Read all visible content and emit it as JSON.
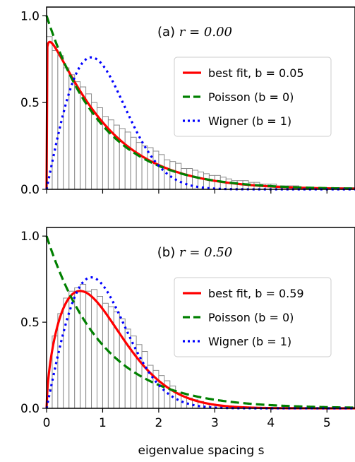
{
  "chart_data": [
    {
      "type": "bar",
      "panel_label": "(a)",
      "title": "r = 0.00",
      "xlabel": "",
      "ylabel": "",
      "xlim": [
        0,
        5.5
      ],
      "ylim": [
        0,
        1.05
      ],
      "yticks": [
        "0.0",
        "0.5",
        "1.0"
      ],
      "xticks": [
        "0",
        "1",
        "2",
        "3",
        "4",
        "5"
      ],
      "show_xtick_labels": false,
      "grid": false,
      "legend_position": "right",
      "bin_width": 0.1,
      "histogram": [
        0.88,
        0.8,
        0.77,
        0.7,
        0.66,
        0.62,
        0.59,
        0.55,
        0.5,
        0.47,
        0.42,
        0.4,
        0.37,
        0.35,
        0.33,
        0.3,
        0.27,
        0.25,
        0.24,
        0.22,
        0.2,
        0.17,
        0.16,
        0.15,
        0.12,
        0.12,
        0.11,
        0.1,
        0.09,
        0.08,
        0.08,
        0.07,
        0.06,
        0.05,
        0.05,
        0.05,
        0.04,
        0.04,
        0.03,
        0.03,
        0.03,
        0.02,
        0.02,
        0.02,
        0.02,
        0.01,
        0.01,
        0.01,
        0.01,
        0.01,
        0.01,
        0.01,
        0.01,
        0.01,
        0.01
      ],
      "series": [
        {
          "name": "best fit, b = 0.05",
          "color": "#ff0000",
          "style": "solid",
          "b": 0.05
        },
        {
          "name": "Poisson (b = 0)",
          "color": "#008000",
          "style": "dashed",
          "b": 0
        },
        {
          "name": "Wigner (b = 1)",
          "color": "#0000ff",
          "style": "dotted",
          "b": 1
        }
      ]
    },
    {
      "type": "bar",
      "panel_label": "(b)",
      "title": "r = 0.50",
      "xlabel": "eigenvalue spacing s",
      "ylabel": "",
      "xlim": [
        0,
        5.5
      ],
      "ylim": [
        0,
        1.05
      ],
      "yticks": [
        "0.0",
        "0.5",
        "1.0"
      ],
      "xticks": [
        "0",
        "1",
        "2",
        "3",
        "4",
        "5"
      ],
      "show_xtick_labels": true,
      "grid": false,
      "legend_position": "right",
      "bin_width": 0.1,
      "histogram": [
        0.11,
        0.42,
        0.55,
        0.64,
        0.68,
        0.7,
        0.72,
        0.68,
        0.69,
        0.65,
        0.61,
        0.59,
        0.56,
        0.52,
        0.46,
        0.42,
        0.37,
        0.33,
        0.25,
        0.22,
        0.19,
        0.16,
        0.13,
        0.09,
        0.07,
        0.06,
        0.05,
        0.04,
        0.03,
        0.02,
        0.02,
        0.01,
        0.01,
        0.01,
        0.01,
        0.0,
        0.0,
        0.0,
        0.0,
        0.0,
        0.0,
        0.0,
        0.0,
        0.0,
        0.0,
        0.0,
        0.0,
        0.0,
        0.0,
        0.0,
        0.0,
        0.0,
        0.0,
        0.0,
        0.0
      ],
      "series": [
        {
          "name": "best fit, b = 0.59",
          "color": "#ff0000",
          "style": "solid",
          "b": 0.59
        },
        {
          "name": "Poisson (b = 0)",
          "color": "#008000",
          "style": "dashed",
          "b": 0
        },
        {
          "name": "Wigner (b = 1)",
          "color": "#0000ff",
          "style": "dotted",
          "b": 1
        }
      ]
    }
  ]
}
